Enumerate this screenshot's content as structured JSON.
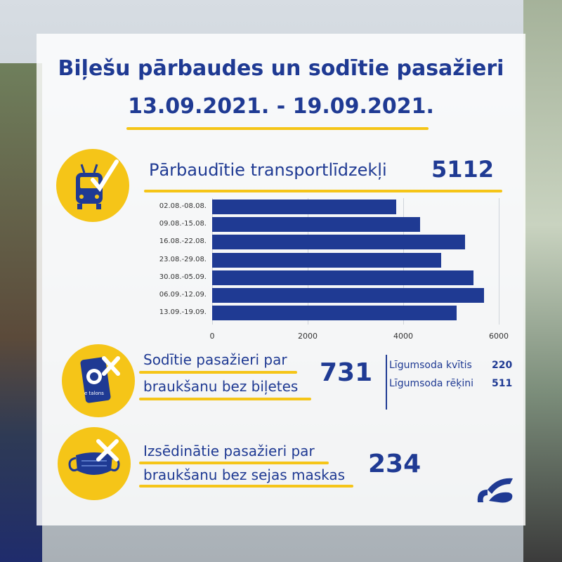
{
  "title": {
    "line1": "Biļešu pārbaudes un sodītie pasažieri",
    "line2": "13.09.2021. - 19.09.2021."
  },
  "vehicles": {
    "label": "Pārbaudītie transportlīdzekļi",
    "value": "5112"
  },
  "chart_data": {
    "type": "bar",
    "orientation": "horizontal",
    "categories": [
      "02.08.-08.08.",
      "09.08.-15.08.",
      "16.08.-22.08.",
      "23.08.-29.08.",
      "30.08.-05.09.",
      "06.09.-12.09.",
      "13.09.-19.09."
    ],
    "values": [
      3850,
      4350,
      5300,
      4800,
      5470,
      5690,
      5112
    ],
    "xlim": [
      0,
      6000
    ],
    "xticks": [
      "0",
      "2000",
      "4000",
      "6000"
    ],
    "grid": true,
    "bar_color": "#1f3a93"
  },
  "fines": {
    "label_line1": "Sodītie pasažieri par",
    "label_line2": "braukšanu bez biļetes",
    "value": "731",
    "kvitis_label": "Līgumsoda kvītis",
    "kvitis_value": "220",
    "rekini_label": "Līgumsoda rēķini",
    "rekini_value": "511",
    "card_text": "e talons"
  },
  "masks": {
    "label_line1": "Izsēdinātie pasažieri par",
    "label_line2": "braukšanu bez sejas maskas",
    "value": "234"
  },
  "colors": {
    "primary": "#1f3a93",
    "accent": "#f5c518"
  }
}
